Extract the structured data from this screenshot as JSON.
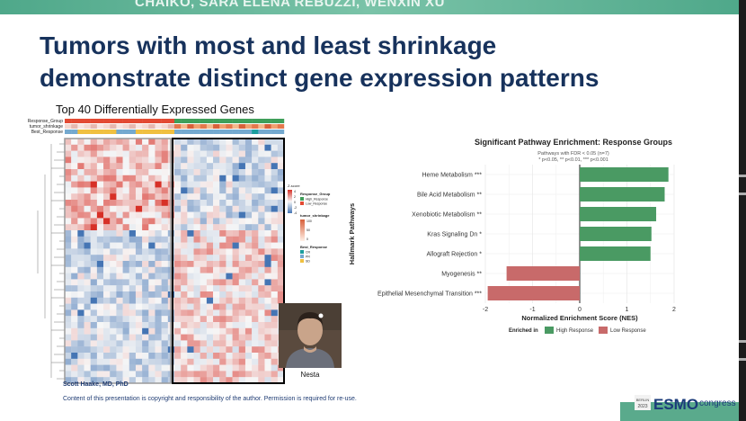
{
  "slide": {
    "header_authors": "CHAIKO, SARA ELENA REBUZZI, WENXIN XU",
    "title_line1": "Tumors with most and least shrinkage",
    "title_line2": "demonstrate distinct gene expression patterns",
    "heatmap_title": "Top 40 Differentially Expressed Genes",
    "author": "Scott Haake, MD, PhD",
    "copyright": "Content of this presentation is copyright and responsibility of the author. Permission is required for re-use.",
    "photo_caption": "Nesta",
    "logo_text": "ESMO",
    "logo_suffix": "congress",
    "logo_year": "2023",
    "logo_city": "BERLIN"
  },
  "heatmap": {
    "row_annotations": [
      "Response_Group",
      "tumor_shrinkage",
      "Best_Response"
    ],
    "legend": {
      "zscore_title": "Z-score",
      "zscore_ticks": [
        "4",
        "2",
        "0",
        "-2",
        "-4"
      ],
      "response_group_title": "Response_Group",
      "response_group_items": [
        "High_Response",
        "Low_Response"
      ],
      "tumor_shrinkage_title": "tumor_shrinkage",
      "tumor_shrinkage_ticks": [
        "100",
        "50",
        "0"
      ],
      "best_response_title": "Best_Response",
      "best_response_items": [
        "CR",
        "PR",
        "SD"
      ]
    },
    "colors": {
      "high": "#d73027",
      "mid": "#f7f7f7",
      "low": "#4575b4",
      "high_response": "#3f9f5a",
      "low_response": "#e34a33",
      "cr": "#1b9e9e",
      "pr": "#74a9cf",
      "sd": "#f0c040"
    }
  },
  "pathway_chart": {
    "title": "Significant Pathway Enrichment: Response Groups",
    "subtitle1": "Pathways with FDR < 0.05 (n=7)",
    "subtitle2": "* p<0.05, ** p<0.01, *** p<0.001",
    "ylabel": "Hallmark Pathways",
    "xlabel": "Normalized Enrichment Score (NES)",
    "legend_title": "Enriched in",
    "legend_items": [
      "High Response",
      "Low Response"
    ],
    "xticks": [
      "-2",
      "-1",
      "0",
      "1",
      "2"
    ]
  },
  "chart_data": {
    "type": "bar",
    "orientation": "horizontal",
    "title": "Significant Pathway Enrichment: Response Groups",
    "xlabel": "Normalized Enrichment Score (NES)",
    "ylabel": "Hallmark Pathways",
    "xlim": [
      -2,
      2
    ],
    "categories": [
      "Heme Metabolism ***",
      "Bile Acid Metabolism **",
      "Xenobiotic Metabolism **",
      "Kras Signaling Dn *",
      "Allograft Rejection *",
      "Myogenesis **",
      "Epithelial Mesenchymal Transition ***"
    ],
    "values": [
      1.88,
      1.8,
      1.62,
      1.52,
      1.5,
      -1.55,
      -1.95
    ],
    "groups": [
      "High Response",
      "High Response",
      "High Response",
      "High Response",
      "High Response",
      "Low Response",
      "Low Response"
    ],
    "colors": {
      "High Response": "#4a9a63",
      "Low Response": "#c86a6a"
    },
    "grid": true,
    "legend_position": "bottom"
  }
}
